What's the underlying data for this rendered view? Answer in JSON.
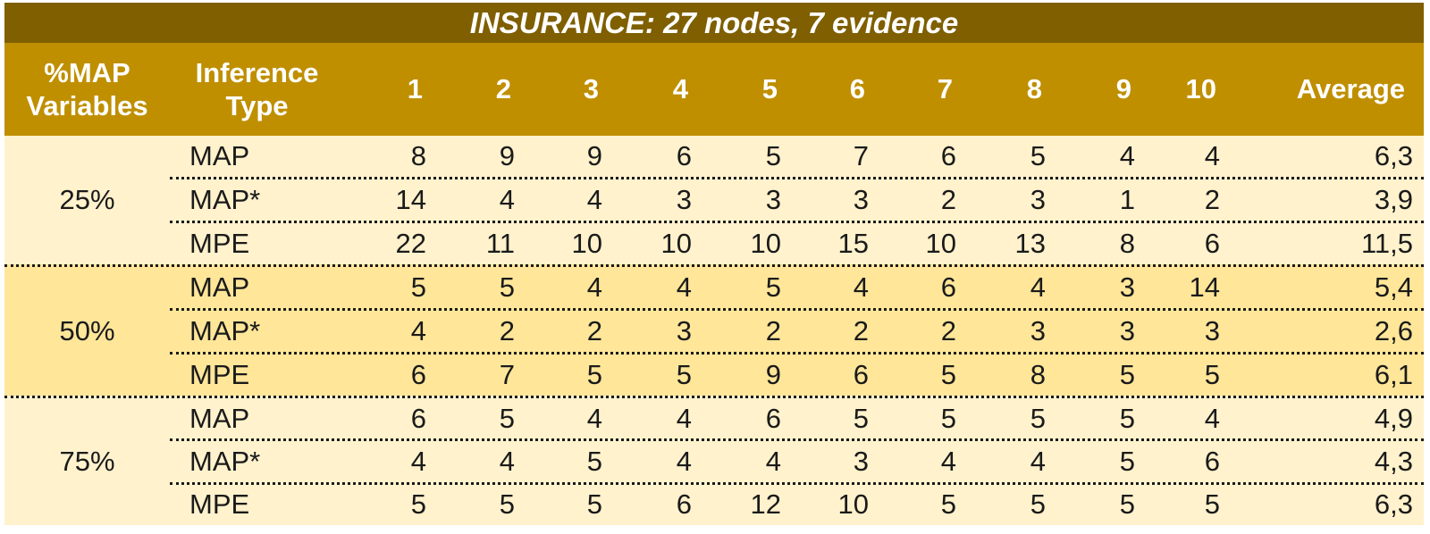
{
  "table": {
    "title": "INSURANCE: 27 nodes, 7 evidence",
    "headers": {
      "col0_line1": "%MAP",
      "col0_line2": "Variables",
      "col1_line1": "Inference",
      "col1_line2": "Type",
      "runs": [
        "1",
        "2",
        "3",
        "4",
        "5",
        "6",
        "7",
        "8",
        "9",
        "10"
      ],
      "average": "Average"
    },
    "groups": [
      {
        "label": "25%",
        "rows": [
          {
            "type": "MAP",
            "values": [
              "8",
              "9",
              "9",
              "6",
              "5",
              "7",
              "6",
              "5",
              "4",
              "4"
            ],
            "average": "6,3"
          },
          {
            "type": "MAP*",
            "values": [
              "14",
              "4",
              "4",
              "3",
              "3",
              "3",
              "2",
              "3",
              "1",
              "2"
            ],
            "average": "3,9"
          },
          {
            "type": "MPE",
            "values": [
              "22",
              "11",
              "10",
              "10",
              "10",
              "15",
              "10",
              "13",
              "8",
              "6"
            ],
            "average": "11,5"
          }
        ]
      },
      {
        "label": "50%",
        "rows": [
          {
            "type": "MAP",
            "values": [
              "5",
              "5",
              "4",
              "4",
              "5",
              "4",
              "6",
              "4",
              "3",
              "14"
            ],
            "average": "5,4"
          },
          {
            "type": "MAP*",
            "values": [
              "4",
              "2",
              "2",
              "3",
              "2",
              "2",
              "2",
              "3",
              "3",
              "3"
            ],
            "average": "2,6"
          },
          {
            "type": "MPE",
            "values": [
              "6",
              "7",
              "5",
              "5",
              "9",
              "6",
              "5",
              "8",
              "5",
              "5"
            ],
            "average": "6,1"
          }
        ]
      },
      {
        "label": "75%",
        "rows": [
          {
            "type": "MAP",
            "values": [
              "6",
              "5",
              "4",
              "4",
              "6",
              "5",
              "5",
              "5",
              "5",
              "4"
            ],
            "average": "4,9"
          },
          {
            "type": "MAP*",
            "values": [
              "4",
              "4",
              "5",
              "4",
              "4",
              "3",
              "4",
              "4",
              "5",
              "6"
            ],
            "average": "4,3"
          },
          {
            "type": "MPE",
            "values": [
              "5",
              "5",
              "5",
              "6",
              "12",
              "10",
              "5",
              "5",
              "5",
              "5"
            ],
            "average": "6,3"
          }
        ]
      }
    ]
  }
}
